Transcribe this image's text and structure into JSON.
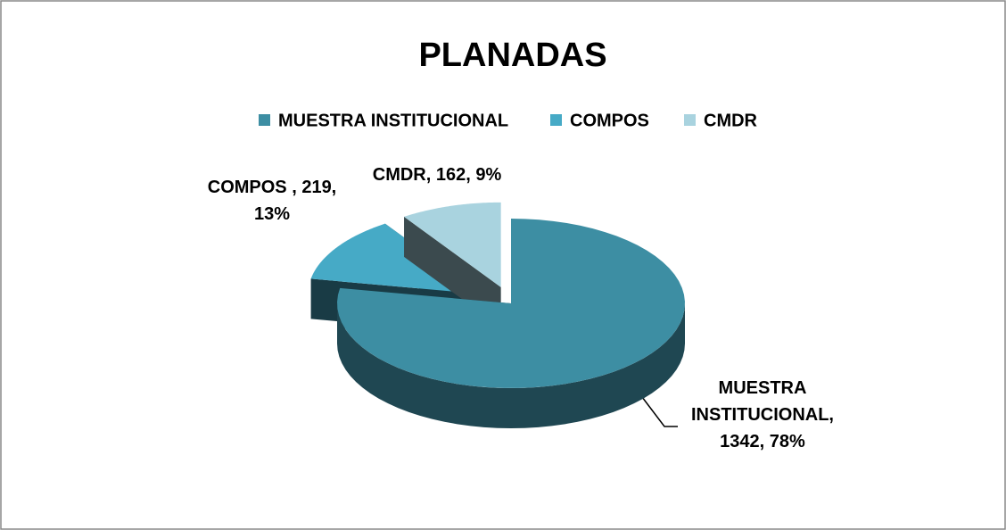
{
  "chart_data": {
    "type": "pie3d",
    "title": "PLANADAS",
    "categories": [
      "MUESTRA INSTITUCIONAL",
      "COMPOS",
      "CMDR"
    ],
    "values": [
      1342,
      219,
      162
    ],
    "value_labels": [
      "MUESTRA INSTITUCIONAL, 1342, 78%",
      "COMPOS , 219, 13%",
      "CMDR, 162, 9%"
    ],
    "colors": [
      "#3d8ea3",
      "#46aac6",
      "#a9d3df"
    ],
    "legend": "top"
  }
}
